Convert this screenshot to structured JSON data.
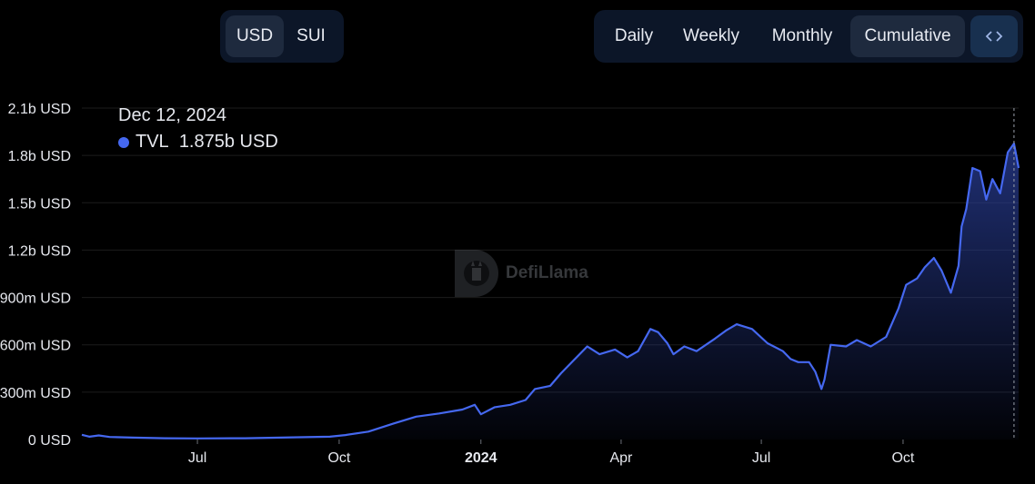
{
  "currency_toggle": {
    "usd_label": "USD",
    "sui_label": "SUI"
  },
  "view_toggle": {
    "daily_label": "Daily",
    "weekly_label": "Weekly",
    "monthly_label": "Monthly",
    "cumulative_label": "Cumulative",
    "embed_icon": "code-icon"
  },
  "tooltip": {
    "date": "Dec 12, 2024",
    "series": "TVL",
    "value": "1.875b USD"
  },
  "watermark": {
    "text": "DefiLlama",
    "icon": "llama-logo-icon"
  },
  "colors": {
    "line": "#4568f0",
    "fill_top": "#2a3f9a",
    "grid": "#1c1c1c",
    "axis_text": "#e6e8ee"
  },
  "chart_data": {
    "type": "area",
    "series": [
      {
        "name": "TVL",
        "points": [
          [
            "2023-04-17",
            30000000
          ],
          [
            "2023-04-22",
            18000000
          ],
          [
            "2023-04-28",
            26000000
          ],
          [
            "2023-05-05",
            16000000
          ],
          [
            "2023-05-20",
            12000000
          ],
          [
            "2023-06-10",
            8000000
          ],
          [
            "2023-07-01",
            7000000
          ],
          [
            "2023-08-01",
            8000000
          ],
          [
            "2023-09-01",
            14000000
          ],
          [
            "2023-09-25",
            18000000
          ],
          [
            "2023-10-05",
            28000000
          ],
          [
            "2023-10-20",
            50000000
          ],
          [
            "2023-11-05",
            100000000
          ],
          [
            "2023-11-20",
            145000000
          ],
          [
            "2023-12-05",
            165000000
          ],
          [
            "2023-12-20",
            190000000
          ],
          [
            "2023-12-28",
            220000000
          ],
          [
            "2024-01-01",
            160000000
          ],
          [
            "2024-01-10",
            205000000
          ],
          [
            "2024-01-20",
            220000000
          ],
          [
            "2024-01-30",
            250000000
          ],
          [
            "2024-02-05",
            320000000
          ],
          [
            "2024-02-15",
            340000000
          ],
          [
            "2024-02-22",
            420000000
          ],
          [
            "2024-03-01",
            500000000
          ],
          [
            "2024-03-10",
            590000000
          ],
          [
            "2024-03-18",
            540000000
          ],
          [
            "2024-03-28",
            570000000
          ],
          [
            "2024-04-05",
            520000000
          ],
          [
            "2024-04-12",
            560000000
          ],
          [
            "2024-04-20",
            700000000
          ],
          [
            "2024-04-25",
            680000000
          ],
          [
            "2024-05-01",
            610000000
          ],
          [
            "2024-05-05",
            540000000
          ],
          [
            "2024-05-12",
            590000000
          ],
          [
            "2024-05-20",
            560000000
          ],
          [
            "2024-06-01",
            640000000
          ],
          [
            "2024-06-08",
            690000000
          ],
          [
            "2024-06-15",
            730000000
          ],
          [
            "2024-06-25",
            700000000
          ],
          [
            "2024-07-05",
            610000000
          ],
          [
            "2024-07-15",
            560000000
          ],
          [
            "2024-07-20",
            510000000
          ],
          [
            "2024-07-25",
            490000000
          ],
          [
            "2024-08-01",
            490000000
          ],
          [
            "2024-08-05",
            430000000
          ],
          [
            "2024-08-09",
            320000000
          ],
          [
            "2024-08-11",
            380000000
          ],
          [
            "2024-08-15",
            600000000
          ],
          [
            "2024-08-25",
            590000000
          ],
          [
            "2024-09-01",
            630000000
          ],
          [
            "2024-09-10",
            590000000
          ],
          [
            "2024-09-20",
            650000000
          ],
          [
            "2024-09-28",
            830000000
          ],
          [
            "2024-10-03",
            980000000
          ],
          [
            "2024-10-10",
            1020000000
          ],
          [
            "2024-10-15",
            1090000000
          ],
          [
            "2024-10-21",
            1150000000
          ],
          [
            "2024-10-26",
            1070000000
          ],
          [
            "2024-11-01",
            930000000
          ],
          [
            "2024-11-06",
            1100000000
          ],
          [
            "2024-11-08",
            1350000000
          ],
          [
            "2024-11-11",
            1460000000
          ],
          [
            "2024-11-15",
            1720000000
          ],
          [
            "2024-11-20",
            1700000000
          ],
          [
            "2024-11-24",
            1520000000
          ],
          [
            "2024-11-28",
            1650000000
          ],
          [
            "2024-12-03",
            1560000000
          ],
          [
            "2024-12-08",
            1820000000
          ],
          [
            "2024-12-12",
            1875000000
          ],
          [
            "2024-12-15",
            1720000000
          ]
        ]
      }
    ],
    "xlim": [
      "2023-04-17",
      "2024-12-15"
    ],
    "x_ticks": [
      {
        "date": "2023-07-01",
        "label": "Jul",
        "bold": false
      },
      {
        "date": "2023-10-01",
        "label": "Oct",
        "bold": false
      },
      {
        "date": "2024-01-01",
        "label": "2024",
        "bold": true
      },
      {
        "date": "2024-04-01",
        "label": "Apr",
        "bold": false
      },
      {
        "date": "2024-07-01",
        "label": "Jul",
        "bold": false
      },
      {
        "date": "2024-10-01",
        "label": "Oct",
        "bold": false
      }
    ],
    "ylim": [
      0,
      2100000000
    ],
    "y_ticks": [
      {
        "value": 0,
        "label": "0 USD"
      },
      {
        "value": 300000000,
        "label": "300m USD"
      },
      {
        "value": 600000000,
        "label": "600m USD"
      },
      {
        "value": 900000000,
        "label": "900m USD"
      },
      {
        "value": 1200000000,
        "label": "1.2b USD"
      },
      {
        "value": 1500000000,
        "label": "1.5b USD"
      },
      {
        "value": 1800000000,
        "label": "1.8b USD"
      },
      {
        "value": 2100000000,
        "label": "2.1b USD"
      }
    ],
    "grid": true,
    "crosshair_date": "2024-12-12"
  }
}
